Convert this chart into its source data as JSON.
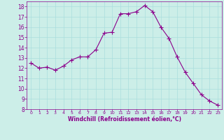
{
  "x": [
    0,
    1,
    2,
    3,
    4,
    5,
    6,
    7,
    8,
    9,
    10,
    11,
    12,
    13,
    14,
    15,
    16,
    17,
    18,
    19,
    20,
    21,
    22,
    23
  ],
  "y": [
    12.5,
    12.0,
    12.1,
    11.8,
    12.2,
    12.8,
    13.1,
    13.1,
    13.8,
    15.4,
    15.5,
    17.3,
    17.3,
    17.5,
    18.1,
    17.5,
    16.0,
    14.9,
    13.1,
    11.6,
    10.5,
    9.4,
    8.8,
    8.4
  ],
  "line_color": "#8b008b",
  "marker": "+",
  "marker_color": "#8b008b",
  "bg_color": "#cceee8",
  "grid_color": "#aadddd",
  "xlabel": "Windchill (Refroidissement éolien,°C)",
  "xlabel_color": "#8b008b",
  "tick_color": "#8b008b",
  "xlim": [
    -0.5,
    23.5
  ],
  "ylim": [
    8,
    18.5
  ],
  "yticks": [
    8,
    9,
    10,
    11,
    12,
    13,
    14,
    15,
    16,
    17,
    18
  ],
  "xticks": [
    0,
    1,
    2,
    3,
    4,
    5,
    6,
    7,
    8,
    9,
    10,
    11,
    12,
    13,
    14,
    15,
    16,
    17,
    18,
    19,
    20,
    21,
    22,
    23
  ],
  "linewidth": 0.8,
  "markersize": 4
}
